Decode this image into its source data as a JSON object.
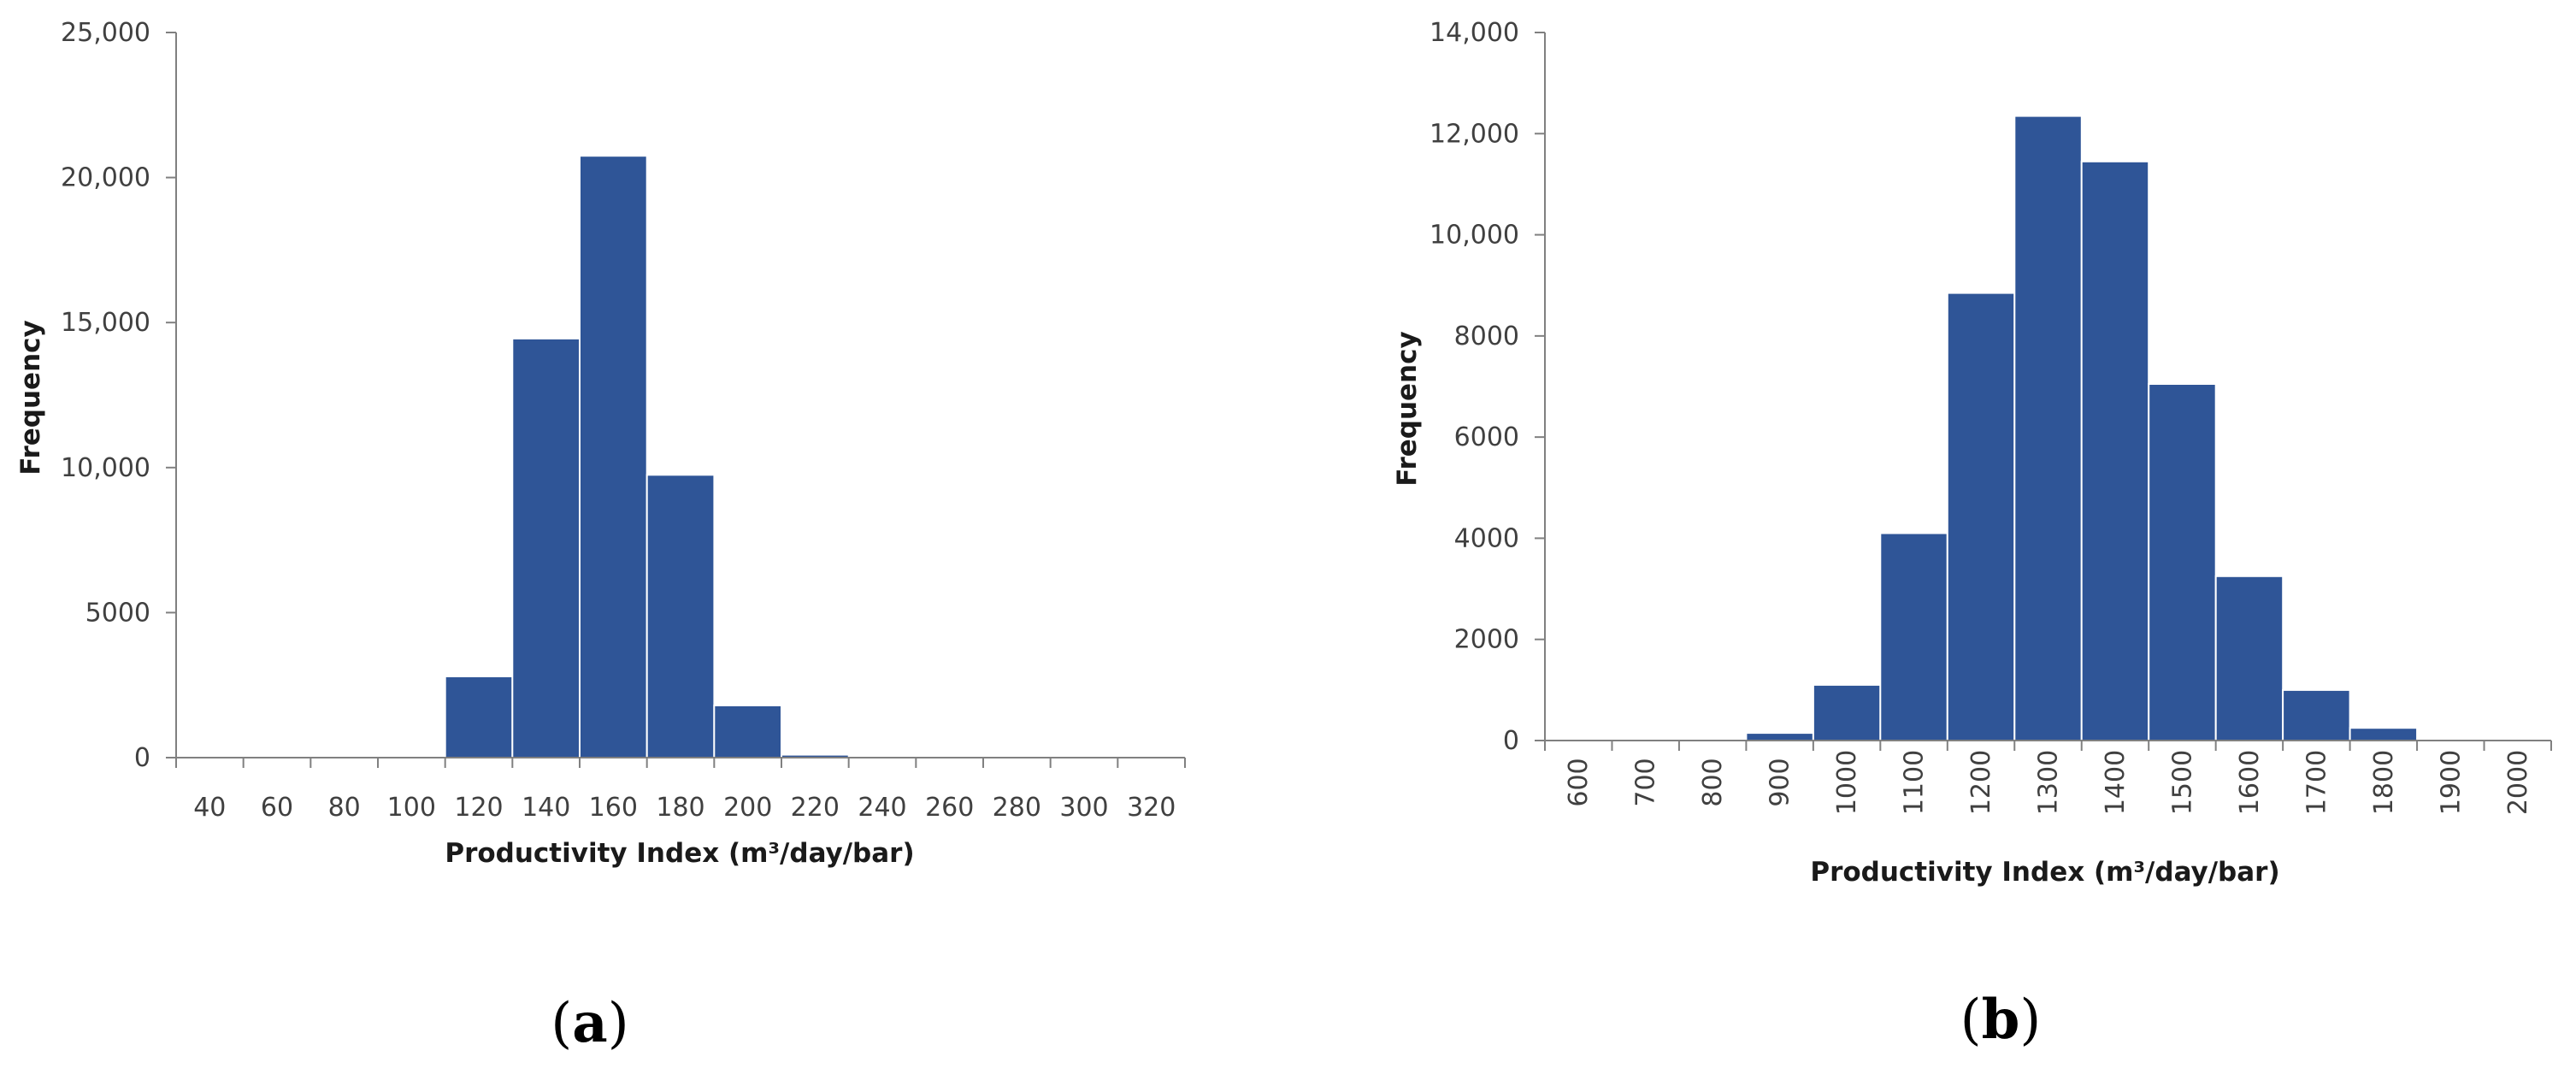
{
  "chart_data": [
    {
      "type": "bar",
      "panel_label": "a",
      "xlabel": "Productivity Index (m³/day/bar)",
      "ylabel": "Frequency",
      "ylim": [
        0,
        25000
      ],
      "y_ticks": [
        "0",
        "5000",
        "10,000",
        "15,000",
        "20,000",
        "25,000"
      ],
      "y_tick_values": [
        0,
        5000,
        10000,
        15000,
        20000,
        25000
      ],
      "categories": [
        "40",
        "60",
        "80",
        "100",
        "120",
        "140",
        "160",
        "180",
        "200",
        "220",
        "240",
        "260",
        "280",
        "300",
        "320"
      ],
      "values": [
        0,
        0,
        0,
        0,
        2800,
        14450,
        20750,
        9750,
        1800,
        100,
        0,
        0,
        0,
        0,
        0
      ],
      "bar_color": "#2F5597",
      "grid": false
    },
    {
      "type": "bar",
      "panel_label": "b",
      "xlabel": "Productivity Index (m³/day/bar)",
      "ylabel": "Frequency",
      "ylim": [
        0,
        14000
      ],
      "y_ticks": [
        "0",
        "2000",
        "4000",
        "6000",
        "8000",
        "10,000",
        "12,000",
        "14,000"
      ],
      "y_tick_values": [
        0,
        2000,
        4000,
        6000,
        8000,
        10000,
        12000,
        14000
      ],
      "categories": [
        "600",
        "700",
        "800",
        "900",
        "1000",
        "1100",
        "1200",
        "1300",
        "1400",
        "1500",
        "1600",
        "1700",
        "1800",
        "1900",
        "2000"
      ],
      "values": [
        0,
        0,
        0,
        150,
        1100,
        4100,
        8850,
        12350,
        11450,
        7050,
        3250,
        1000,
        250,
        0,
        0
      ],
      "bar_color": "#2F5597",
      "grid": false
    }
  ]
}
